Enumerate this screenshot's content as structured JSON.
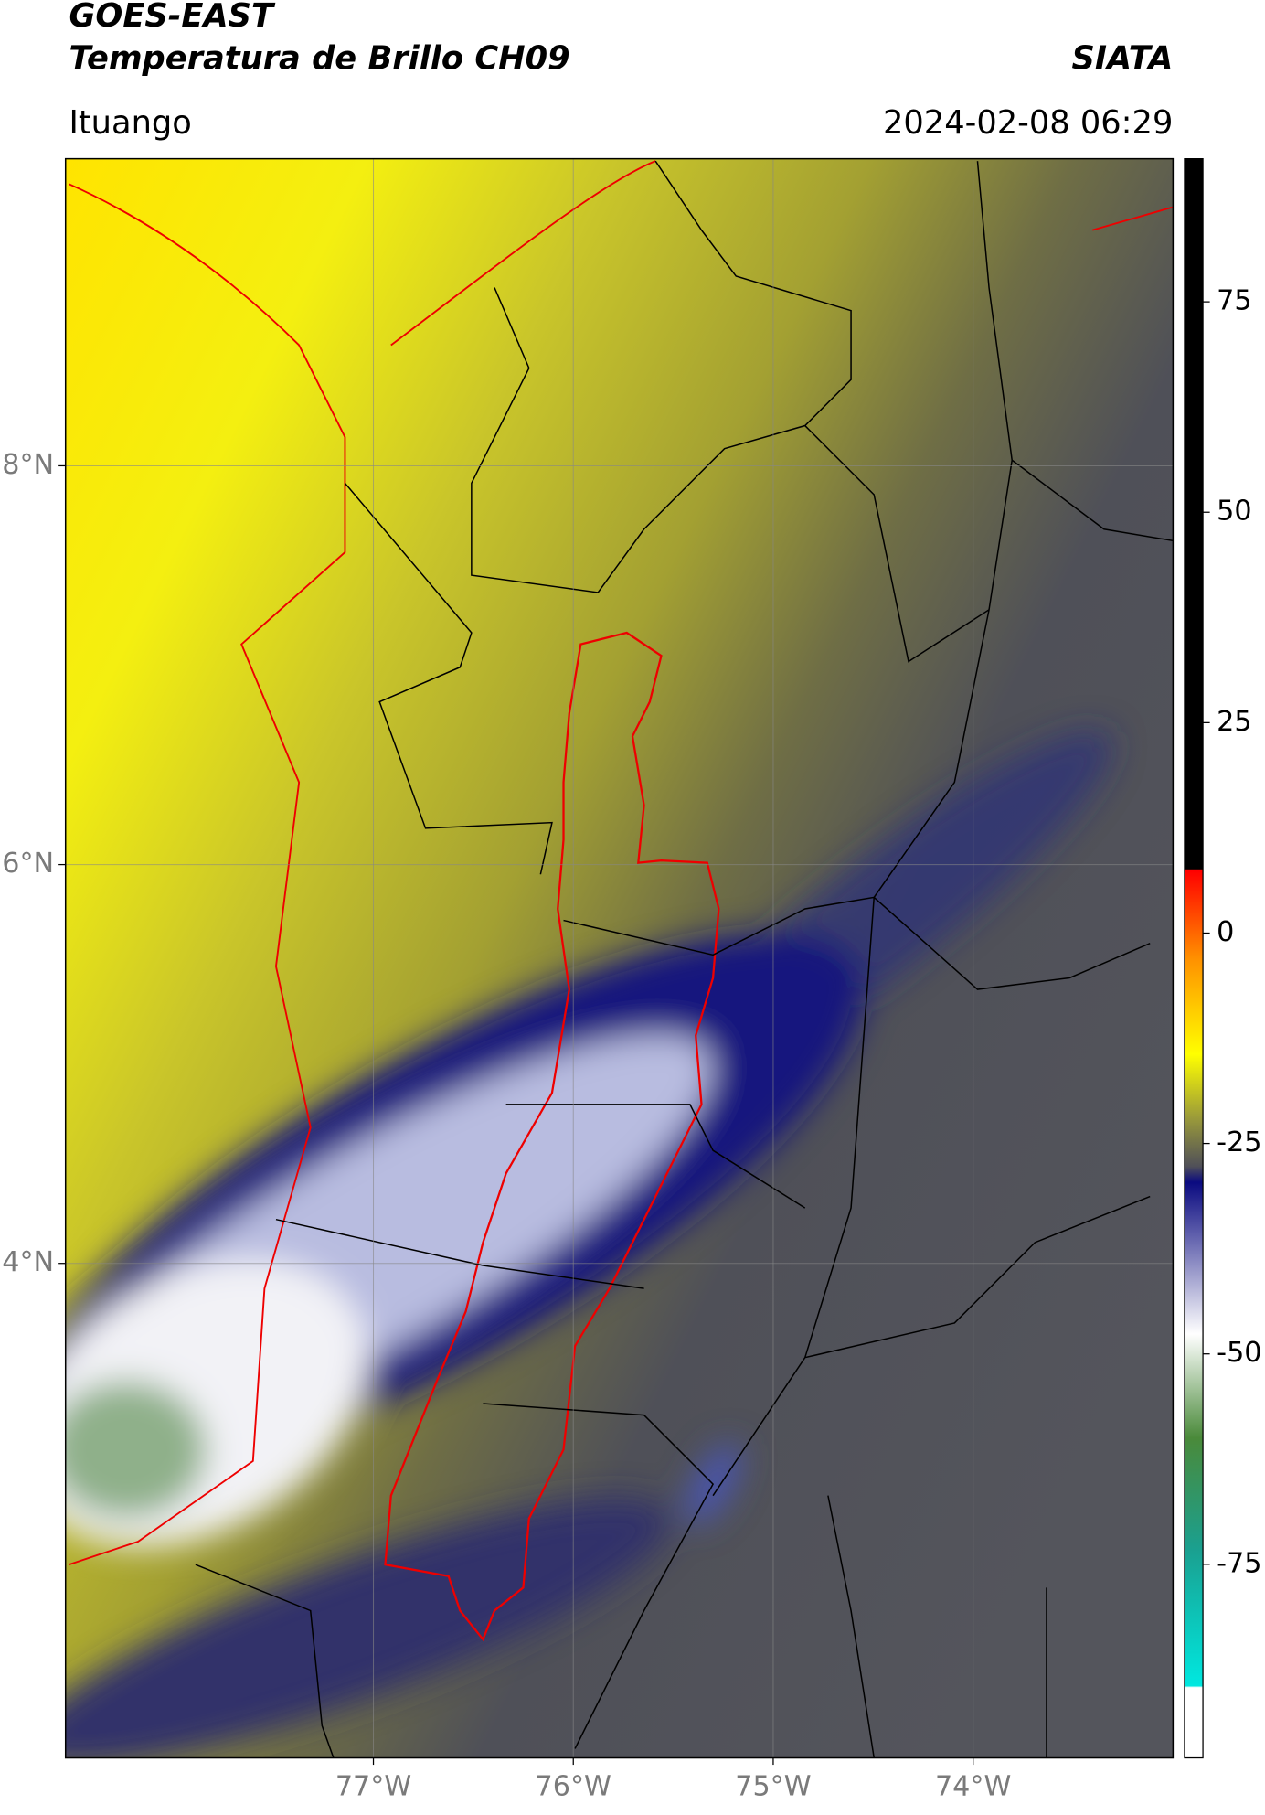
{
  "header": {
    "title": "GOES-EAST",
    "subtitle": "Temperatura de Brillo CH09",
    "source": "SIATA",
    "location": "Ituango",
    "datetime": "2024-02-08 06:29"
  },
  "map": {
    "xlim": [
      -78.54,
      -73.0
    ],
    "ylim": [
      1.52,
      9.54
    ],
    "xticks": [
      {
        "value": -77,
        "label": "77°W"
      },
      {
        "value": -76,
        "label": "76°W"
      },
      {
        "value": -75,
        "label": "75°W"
      },
      {
        "value": -74,
        "label": "74°W"
      }
    ],
    "yticks": [
      {
        "value": 8,
        "label": "8°N"
      },
      {
        "value": 6,
        "label": "6°N"
      },
      {
        "value": 4,
        "label": "4°N"
      }
    ],
    "grid": true
  },
  "colorbar": {
    "lim": [
      -98,
      92
    ],
    "ticks": [
      75,
      50,
      25,
      0,
      -25,
      -50,
      -75
    ]
  }
}
